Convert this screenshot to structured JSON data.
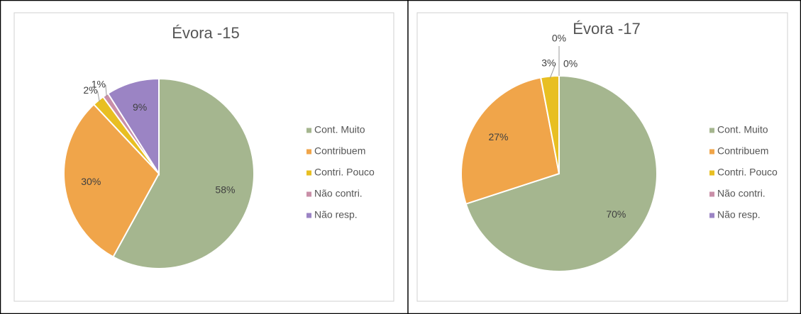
{
  "chart_data": [
    {
      "type": "pie",
      "title": "Évora -15",
      "categories": [
        "Cont. Muito",
        "Contribuem",
        "Contri. Pouco",
        "Não contri.",
        "Não resp."
      ],
      "values": [
        58,
        30,
        2,
        1,
        9
      ],
      "value_labels": [
        "58%",
        "30%",
        "2%",
        "1%",
        "9%"
      ],
      "colors": [
        "#a5b68f",
        "#f0a54a",
        "#e8bf22",
        "#c98fa8",
        "#9b84c4"
      ],
      "legend": "right"
    },
    {
      "type": "pie",
      "title": "Évora -17",
      "categories": [
        "Cont. Muito",
        "Contribuem",
        "Contri. Pouco",
        "Não contri.",
        "Não resp."
      ],
      "values": [
        70,
        27,
        3,
        0,
        0
      ],
      "value_labels": [
        "70%",
        "27%",
        "3%",
        "0%",
        "0%"
      ],
      "colors": [
        "#a5b68f",
        "#f0a54a",
        "#e8bf22",
        "#c98fa8",
        "#9b84c4"
      ],
      "legend": "right"
    }
  ]
}
